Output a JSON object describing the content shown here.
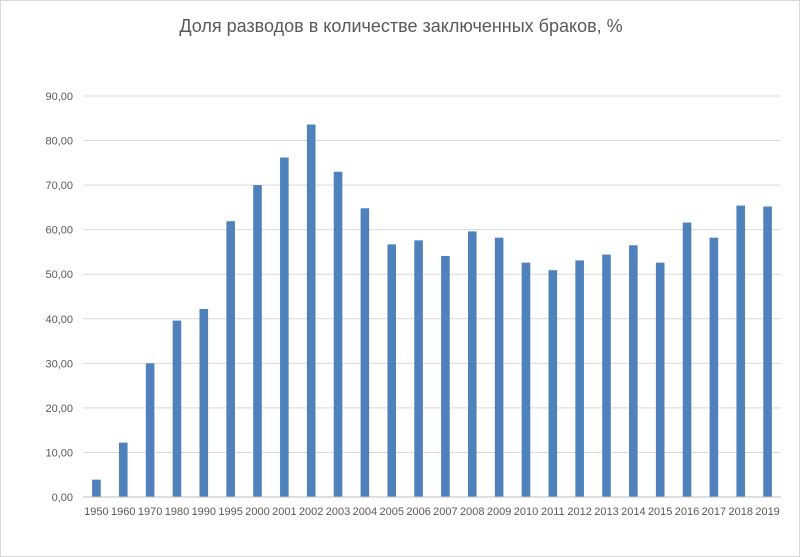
{
  "chart_data": {
    "type": "bar",
    "title": "Доля разводов в количестве заключенных браков, %",
    "xlabel": "",
    "ylabel": "",
    "ylim": [
      0,
      90
    ],
    "y_tick_step": 10,
    "y_tick_labels": [
      "0,00",
      "10,00",
      "20,00",
      "30,00",
      "40,00",
      "50,00",
      "60,00",
      "70,00",
      "80,00",
      "90,00"
    ],
    "grid": true,
    "legend": "none",
    "bar_color": "#4f81bd",
    "categories": [
      "1950",
      "1960",
      "1970",
      "1980",
      "1990",
      "1995",
      "2000",
      "2001",
      "2002",
      "2003",
      "2004",
      "2005",
      "2006",
      "2007",
      "2008",
      "2009",
      "2010",
      "2011",
      "2012",
      "2013",
      "2014",
      "2015",
      "2016",
      "2017",
      "2018",
      "2019"
    ],
    "values": [
      3.9,
      12.2,
      30.0,
      39.6,
      42.2,
      61.9,
      70.0,
      76.2,
      83.6,
      73.0,
      64.8,
      56.7,
      57.6,
      54.1,
      59.6,
      58.2,
      52.6,
      50.9,
      53.1,
      54.4,
      56.5,
      52.6,
      61.6,
      58.2,
      65.4,
      65.2
    ]
  }
}
